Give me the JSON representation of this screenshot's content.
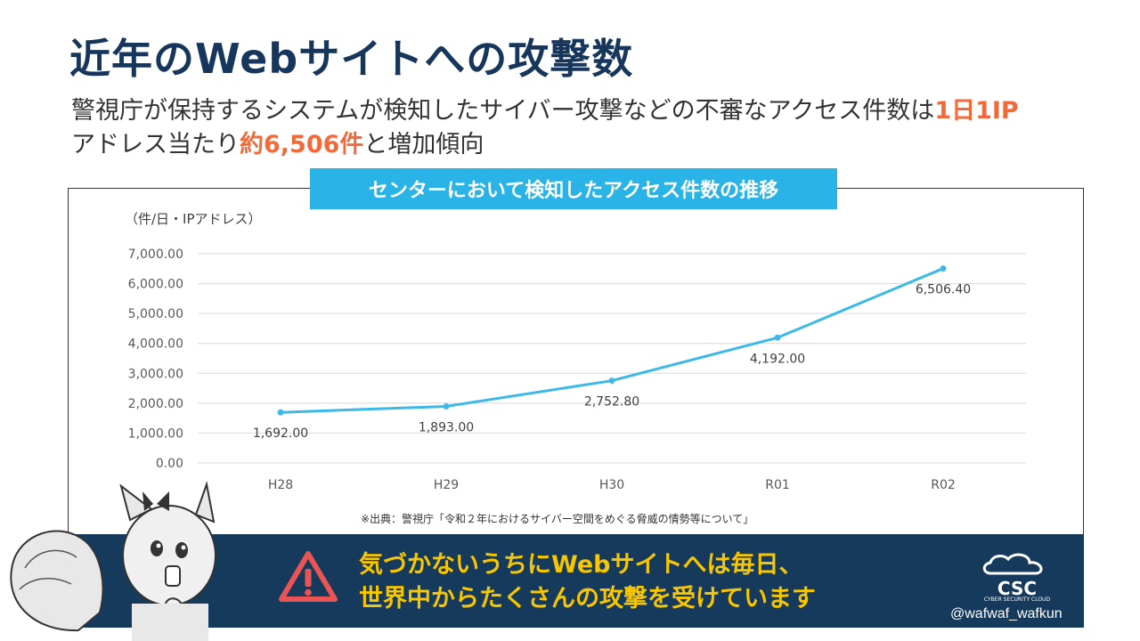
{
  "slide": {
    "title": "近年のWebサイトへの攻撃数",
    "subtitle_part1": "警視庁が保持するシステムが検知したサイバー攻撃などの不審なアクセス件数は",
    "subtitle_highlight1": "1日1IP",
    "subtitle_part2": "アドレス当たり",
    "subtitle_highlight2": "約6,506件",
    "subtitle_part3": "と増加傾向",
    "highlight_color": "#f26a3a",
    "title_color": "#16365c"
  },
  "chart_banner": {
    "text": "センターにおいて検知したアクセス件数の推移",
    "color": "#29b3e6"
  },
  "chart_data": {
    "type": "line",
    "title": "センターにおいて検知したアクセス件数の推移",
    "ylabel": "（件/日・IPアドレス）",
    "xlabel": "",
    "categories": [
      "H28",
      "H29",
      "H30",
      "R01",
      "R02"
    ],
    "series": [
      {
        "values": [
          1692.0,
          1893.0,
          2752.8,
          4192.0,
          6506.4
        ],
        "color": "#3cb9e6"
      }
    ],
    "data_labels": [
      "1,692.00",
      "1,893.00",
      "2,752.80",
      "4,192.00",
      "6,506.40"
    ],
    "ylim": [
      0,
      7000
    ],
    "yticks": [
      0,
      1000,
      2000,
      3000,
      4000,
      5000,
      6000,
      7000
    ],
    "ytick_labels": [
      "0.00",
      "1,000.00",
      "2,000.00",
      "3,000.00",
      "4,000.00",
      "5,000.00",
      "6,000.00",
      "7,000.00"
    ],
    "grid": true,
    "legend": false
  },
  "source_note": "※出典：警視庁「令和２年におけるサイバー空間をめぐる脅威の情勢等について」",
  "warning_banner": {
    "line1": "気づかないうちにWebサイトへは毎日、",
    "line2": "世界中からたくさんの攻撃を受けています",
    "bg_color": "#163a5c",
    "text_color": "#f7c600",
    "icon": "warning-triangle-icon"
  },
  "logo": {
    "text": "CSC",
    "subtext": "CYBER SECURITY CLOUD"
  },
  "handle": "@wafwaf_wafkun"
}
